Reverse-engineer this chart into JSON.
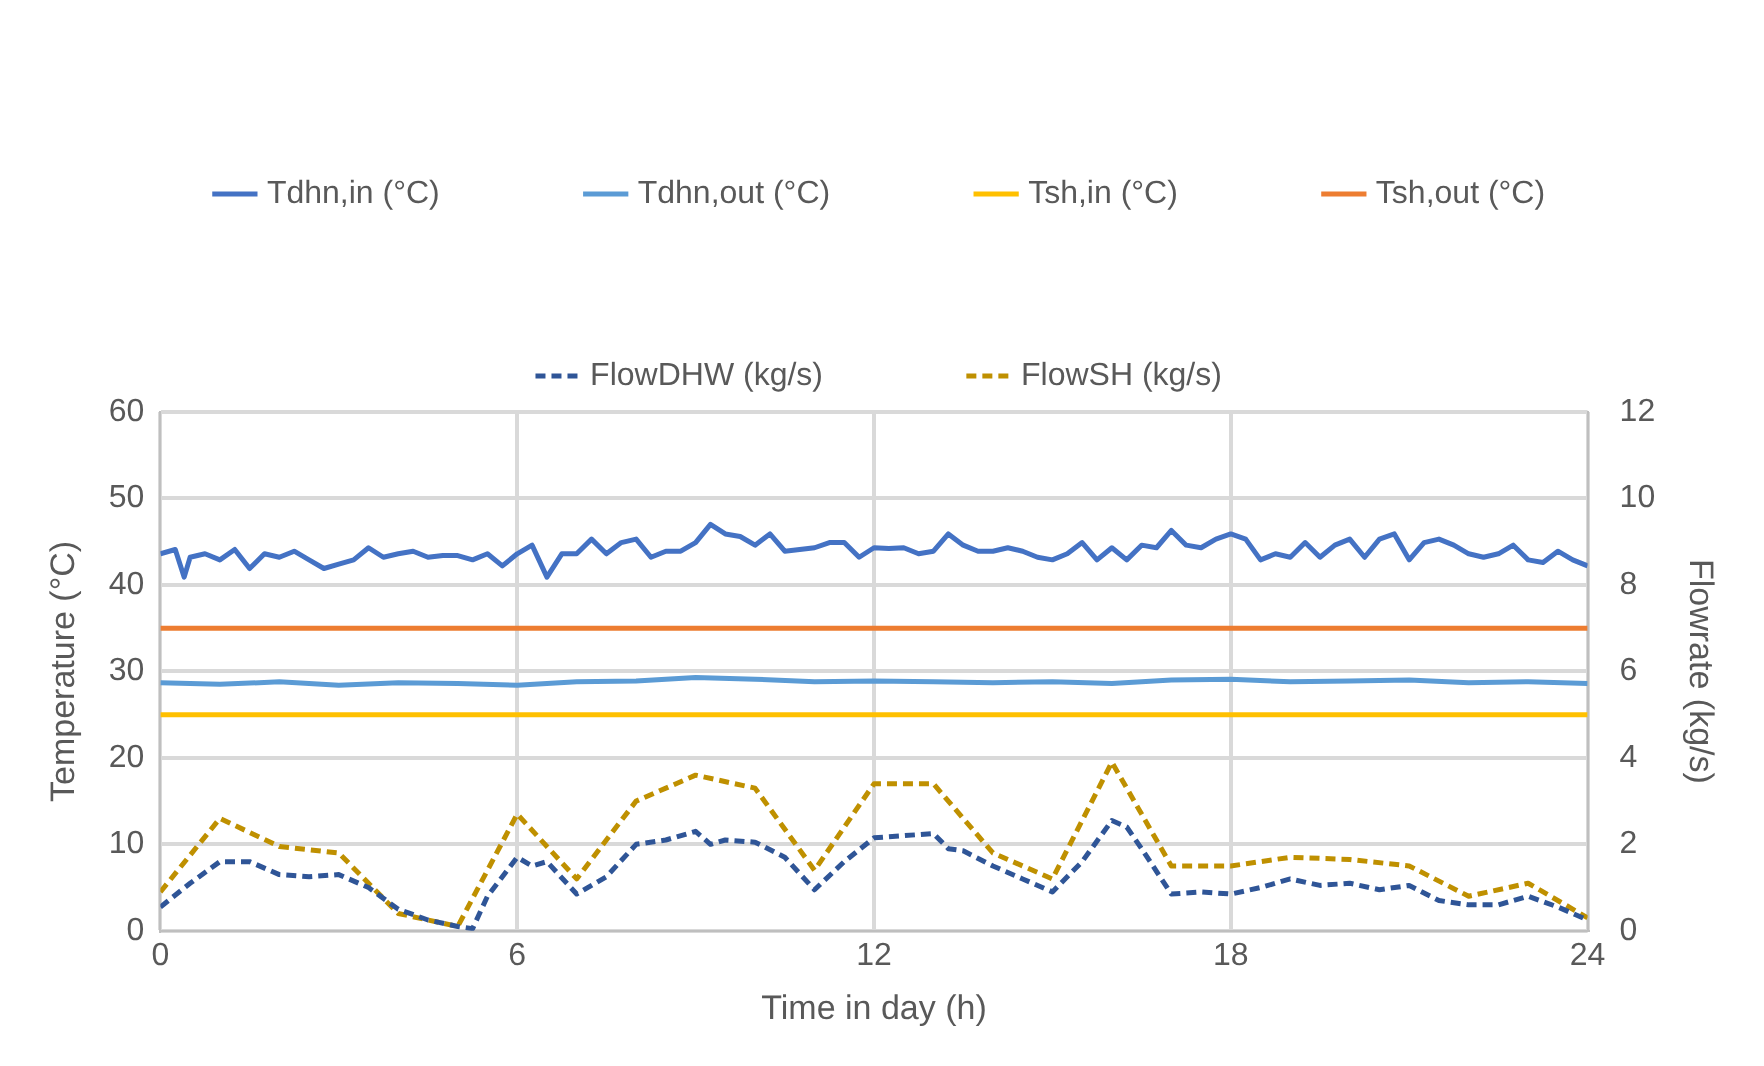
{
  "chart_data": {
    "type": "line",
    "xlabel": "Time in day (h)",
    "ylabel": "Temperature (°C)",
    "y2label": "Flowrate (kg/s)",
    "xlim": [
      0,
      24
    ],
    "xticks": [
      0,
      6,
      12,
      18,
      24
    ],
    "ylim": [
      0,
      60
    ],
    "yticks": [
      0,
      10,
      20,
      30,
      40,
      50,
      60
    ],
    "y2lim": [
      0,
      12
    ],
    "y2ticks": [
      0,
      2,
      4,
      6,
      8,
      10,
      12
    ],
    "grid": true,
    "legend": "top",
    "marker": "none",
    "series": [
      {
        "name": "Tdhn,in (°C)",
        "color": "#4472c4",
        "line_style": "solid",
        "x": [
          0,
          0.25,
          0.4,
          0.5,
          0.75,
          1,
          1.25,
          1.5,
          1.75,
          2,
          2.25,
          2.5,
          2.75,
          3,
          3.25,
          3.5,
          3.75,
          4,
          4.25,
          4.5,
          4.75,
          5,
          5.25,
          5.5,
          5.75,
          6,
          6.25,
          6.5,
          6.75,
          7,
          7.25,
          7.5,
          7.75,
          8,
          8.25,
          8.5,
          8.75,
          9,
          9.25,
          9.5,
          9.75,
          10,
          10.25,
          10.5,
          10.75,
          11,
          11.25,
          11.5,
          11.75,
          12,
          12.25,
          12.5,
          12.75,
          13,
          13.25,
          13.5,
          13.75,
          14,
          14.25,
          14.5,
          14.75,
          15,
          15.25,
          15.5,
          15.75,
          16,
          16.25,
          16.5,
          16.75,
          17,
          17.25,
          17.5,
          17.75,
          18,
          18.25,
          18.5,
          18.75,
          19,
          19.25,
          19.5,
          19.75,
          20,
          20.25,
          20.5,
          20.75,
          21,
          21.25,
          21.5,
          21.75,
          22,
          22.25,
          22.5,
          22.75,
          23,
          23.25,
          23.5,
          23.75,
          24
        ],
        "values": [
          43.6,
          44.1,
          40.9,
          43.2,
          43.6,
          42.9,
          44.1,
          41.9,
          43.6,
          43.2,
          43.9,
          42.9,
          41.9,
          42.4,
          42.9,
          44.3,
          43.2,
          43.6,
          43.9,
          43.2,
          43.4,
          43.4,
          42.9,
          43.6,
          42.2,
          43.6,
          44.6,
          40.9,
          43.6,
          43.6,
          45.3,
          43.6,
          44.9,
          45.3,
          43.2,
          43.9,
          43.9,
          44.9,
          47.0,
          45.9,
          45.6,
          44.6,
          45.9,
          43.9,
          44.1,
          44.3,
          44.9,
          44.9,
          43.2,
          44.3,
          44.2,
          44.3,
          43.6,
          43.9,
          45.9,
          44.6,
          43.9,
          43.9,
          44.3,
          43.9,
          43.2,
          42.9,
          43.6,
          44.9,
          42.9,
          44.3,
          42.9,
          44.6,
          44.3,
          46.3,
          44.6,
          44.3,
          45.3,
          45.9,
          45.3,
          42.9,
          43.6,
          43.2,
          44.9,
          43.2,
          44.6,
          45.3,
          43.2,
          45.3,
          45.9,
          42.9,
          44.9,
          45.3,
          44.6,
          43.6,
          43.2,
          43.6,
          44.6,
          42.9,
          42.6,
          43.9,
          42.9,
          42.2
        ]
      },
      {
        "name": "Tdhn,out (°C)",
        "color": "#5b9bd5",
        "line_style": "solid",
        "x": [
          0,
          1,
          2,
          3,
          4,
          5,
          6,
          7,
          8,
          9,
          10,
          11,
          12,
          13,
          14,
          15,
          16,
          17,
          18,
          19,
          20,
          21,
          22,
          23,
          24
        ],
        "values": [
          28.7,
          28.5,
          28.8,
          28.4,
          28.7,
          28.6,
          28.4,
          28.8,
          28.9,
          29.3,
          29.1,
          28.8,
          28.9,
          28.8,
          28.7,
          28.8,
          28.6,
          29.0,
          29.1,
          28.8,
          28.9,
          29.0,
          28.7,
          28.8,
          28.6
        ]
      },
      {
        "name": "Tsh,in (°C)",
        "color": "#ffc000",
        "line_style": "solid",
        "x": [
          0,
          24
        ],
        "values": [
          25,
          25
        ]
      },
      {
        "name": "Tsh,out (°C)",
        "color": "#ed7d31",
        "line_style": "solid",
        "x": [
          0,
          24
        ],
        "values": [
          35,
          35
        ]
      },
      {
        "name": "FlowDHW (kg/s)",
        "color": "#2f5597",
        "line_style": "dashed",
        "axis": "y2",
        "x": [
          0,
          0.5,
          1,
          1.5,
          2,
          2.5,
          3,
          3.5,
          4,
          4.5,
          5,
          5.25,
          5.5,
          6,
          6.25,
          6.5,
          7,
          7.5,
          8,
          8.5,
          9,
          9.25,
          9.5,
          10,
          10.5,
          11,
          11.5,
          12,
          12.5,
          13,
          13.25,
          13.5,
          14,
          14.5,
          15,
          15.5,
          16,
          16.25,
          16.5,
          17,
          17.5,
          18,
          18.5,
          19,
          19.5,
          20,
          20.5,
          21,
          21.5,
          22,
          22.5,
          23,
          23.5,
          24
        ],
        "values": [
          0.55,
          1.1,
          1.6,
          1.6,
          1.3,
          1.25,
          1.3,
          1.0,
          0.5,
          0.25,
          0.1,
          0.05,
          0.8,
          1.7,
          1.5,
          1.6,
          0.85,
          1.25,
          2.0,
          2.1,
          2.3,
          2.0,
          2.1,
          2.05,
          1.7,
          0.95,
          1.6,
          2.15,
          2.2,
          2.25,
          1.9,
          1.85,
          1.5,
          1.2,
          0.9,
          1.6,
          2.55,
          2.4,
          1.9,
          0.85,
          0.9,
          0.85,
          1.0,
          1.2,
          1.05,
          1.1,
          0.95,
          1.05,
          0.7,
          0.6,
          0.6,
          0.8,
          0.55,
          0.25
        ]
      },
      {
        "name": "FlowSH (kg/s)",
        "color": "#bf9000",
        "line_style": "dashed",
        "axis": "y2",
        "x": [
          0,
          1,
          2,
          3,
          4,
          5,
          6,
          7,
          8,
          9,
          10,
          11,
          12,
          13,
          14,
          15,
          16,
          17,
          18,
          19,
          20,
          21,
          22,
          23,
          24
        ],
        "values": [
          0.9,
          2.6,
          1.95,
          1.8,
          0.4,
          0.1,
          2.7,
          1.2,
          3.0,
          3.6,
          3.3,
          1.4,
          3.4,
          3.4,
          1.8,
          1.2,
          3.9,
          1.5,
          1.5,
          1.7,
          1.65,
          1.5,
          0.8,
          1.1,
          0.3
        ]
      }
    ]
  }
}
